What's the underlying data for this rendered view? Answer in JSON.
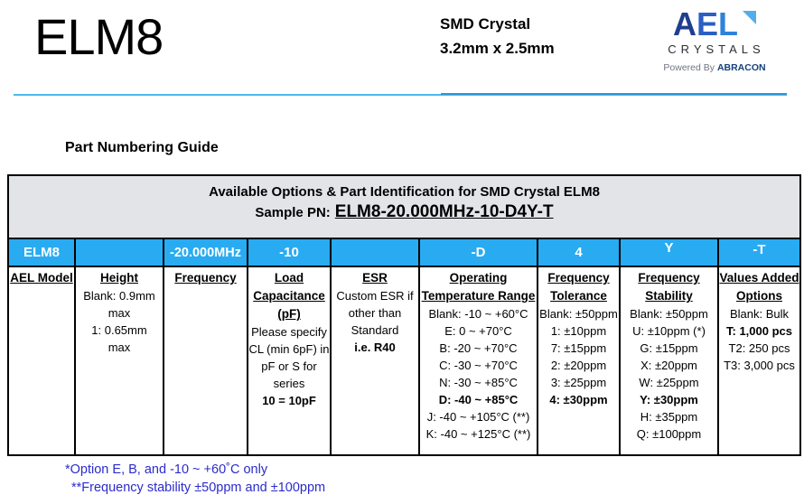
{
  "header": {
    "model": "ELM8",
    "product": {
      "line1": "SMD Crystal",
      "line2": "3.2mm x 2.5mm"
    },
    "logo": {
      "letters": [
        "A",
        "E",
        "L"
      ],
      "wordmark": "CRYSTALS",
      "powered_by": "Powered By",
      "powered_brand": "ABRACON"
    }
  },
  "section_title": "Part Numbering Guide",
  "table": {
    "title": "Available Options & Part Identification for SMD Crystal ELM8",
    "sample_pn_label": "Sample PN:",
    "sample_pn_value": "ELM8-20.000MHz-10-D4Y-T",
    "code_row": [
      "ELM8",
      "",
      "-20.000MHz",
      "-10",
      "",
      "-D",
      "4",
      "Y",
      "-T"
    ],
    "columns": [
      {
        "name": "ael-model",
        "header": [
          "AEL Model"
        ],
        "lines": []
      },
      {
        "name": "height",
        "header": [
          "Height"
        ],
        "lines": [
          "Blank: 0.9mm",
          "max",
          "1: 0.65mm",
          "max"
        ]
      },
      {
        "name": "frequency",
        "header": [
          "Frequency"
        ],
        "lines": []
      },
      {
        "name": "load-capacitance",
        "header": [
          "Load",
          "Capacitance",
          "(pF)"
        ],
        "lines": [
          "Please specify",
          "CL (min 6pF) in",
          "pF or S for",
          "series",
          {
            "t": "10 = 10pF",
            "b": true
          }
        ]
      },
      {
        "name": "esr",
        "header": [
          "ESR"
        ],
        "lines": [
          "Custom ESR if",
          "other than",
          "Standard",
          {
            "t": "i.e. R40",
            "b": true
          }
        ]
      },
      {
        "name": "operating-temperature-range",
        "header": [
          "Operating",
          "Temperature Range"
        ],
        "lines": [
          "Blank: -10 ~ +60°C",
          "E: 0 ~ +70°C",
          "B: -20 ~ +70°C",
          "C: -30 ~ +70°C",
          "N: -30 ~ +85°C",
          {
            "t": "D: -40 ~ +85°C",
            "b": true
          },
          "J: -40 ~ +105°C (**)",
          "K: -40 ~ +125°C (**)"
        ]
      },
      {
        "name": "frequency-tolerance",
        "header": [
          "Frequency",
          "Tolerance"
        ],
        "lines": [
          "Blank: ±50ppm",
          "1: ±10ppm",
          "7: ±15ppm",
          "2: ±20ppm",
          "3: ±25ppm",
          {
            "t": "4: ±30ppm",
            "b": true
          }
        ]
      },
      {
        "name": "frequency-stability",
        "header": [
          "Frequency",
          "Stability"
        ],
        "lines": [
          "Blank: ±50ppm",
          "U: ±10ppm (*)",
          "G: ±15ppm",
          "X: ±20ppm",
          "W: ±25ppm",
          {
            "t": "Y: ±30ppm",
            "b": true
          },
          "H: ±35ppm",
          "Q: ±100ppm"
        ]
      },
      {
        "name": "values-added-options",
        "header": [
          "Values Added",
          "Options"
        ],
        "lines": [
          "Blank: Bulk",
          {
            "t": "T: 1,000 pcs",
            "b": true
          },
          "T2: 250 pcs",
          "T3: 3,000 pcs"
        ]
      }
    ]
  },
  "footnotes": [
    "*Option E, B, and -10 ~ +60˚C only",
    "**Frequency stability ±50ppm and ±100ppm"
  ],
  "colors": {
    "accent_blue": "#29ABF2",
    "header_gray": "#E3E4E8",
    "note_blue": "#2B2BCC",
    "rule_blue": "#4FB8EE"
  }
}
